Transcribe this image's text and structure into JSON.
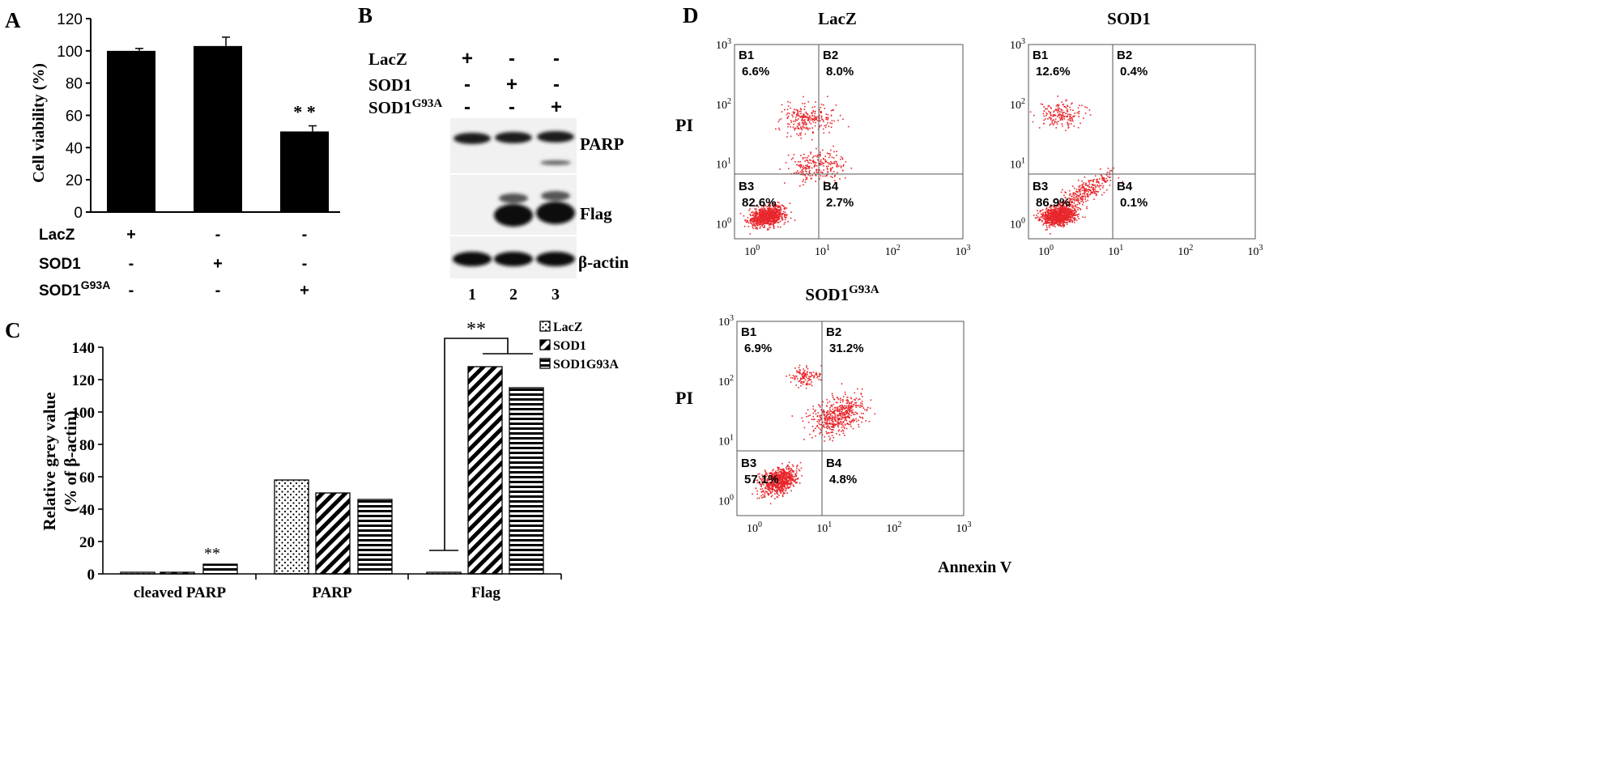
{
  "colors": {
    "ink": "#000000",
    "dots": "#e8262b",
    "blot_bg": "#f1f1f1",
    "band": "#1a1a1a"
  },
  "chart_data": [
    {
      "panel": "A",
      "type": "bar",
      "ylabel": "Cell viability (%)",
      "ylim": [
        0,
        120
      ],
      "yticks": [
        "0",
        "20",
        "40",
        "60",
        "80",
        "100",
        "120"
      ],
      "categories": [
        "LacZ",
        "SOD1",
        "SOD1G93A"
      ],
      "values": [
        100,
        103,
        50
      ],
      "errors": [
        1.5,
        5.5,
        3.5
      ],
      "significance": [
        "",
        "",
        "* *"
      ],
      "rows": [
        {
          "label": "LacZ",
          "marks": [
            "+",
            "-",
            "-"
          ]
        },
        {
          "label": "SOD1",
          "marks": [
            "-",
            "+",
            "-"
          ]
        },
        {
          "label": "SOD1",
          "sup": "G93A",
          "marks": [
            "-",
            "-",
            "+"
          ]
        }
      ]
    },
    {
      "panel": "C",
      "type": "bar",
      "ylabel_line1": "Relative grey value",
      "ylabel_line2": "(% of β-actin)",
      "ylim": [
        0,
        140
      ],
      "yticks": [
        "0",
        "20",
        "40",
        "60",
        "80",
        "100",
        "120",
        "140"
      ],
      "categories": [
        "cleaved PARP",
        "PARP",
        "Flag"
      ],
      "series": [
        {
          "name": "LacZ",
          "values": [
            1,
            58,
            1
          ]
        },
        {
          "name": "SOD1",
          "values": [
            1,
            50,
            128
          ]
        },
        {
          "name": "SOD1G93A",
          "values": [
            6,
            46,
            115
          ]
        }
      ],
      "annotations": [
        "**",
        "**"
      ]
    },
    {
      "panel": "D",
      "type": "scatter",
      "xlabel": "Annexin V",
      "ylabel": "PI",
      "axis_exponents": [
        "0",
        "1",
        "2",
        "3"
      ],
      "axis_base": "10",
      "plots": [
        {
          "title": "LacZ",
          "quadrants": [
            {
              "name": "B1",
              "value": "6.6%"
            },
            {
              "name": "B2",
              "value": "8.0%"
            },
            {
              "name": "B3",
              "value": "82.6%"
            },
            {
              "name": "B4",
              "value": "2.7%"
            }
          ]
        },
        {
          "title": "SOD1",
          "quadrants": [
            {
              "name": "B1",
              "value": "12.6%"
            },
            {
              "name": "B2",
              "value": "0.4%"
            },
            {
              "name": "B3",
              "value": "86.9%"
            },
            {
              "name": "B4",
              "value": "0.1%"
            }
          ]
        },
        {
          "title": "SOD1",
          "title_sup": "G93A",
          "quadrants": [
            {
              "name": "B1",
              "value": "6.9%"
            },
            {
              "name": "B2",
              "value": "31.2%"
            },
            {
              "name": "B3",
              "value": "57.1%"
            },
            {
              "name": "B4",
              "value": "4.8%"
            }
          ]
        }
      ]
    }
  ],
  "panels": {
    "a": "A",
    "b": "B",
    "c": "C",
    "d": "D"
  },
  "blot": {
    "rows": [
      {
        "label": "LacZ",
        "marks": [
          "+",
          "-",
          "-"
        ]
      },
      {
        "label": "SOD1",
        "marks": [
          "-",
          "+",
          "-"
        ]
      },
      {
        "label": "SOD1",
        "sup": "G93A",
        "marks": [
          "-",
          "-",
          "+"
        ]
      }
    ],
    "bands": [
      "PARP",
      "Flag",
      "β-actin"
    ],
    "lanes": [
      "1",
      "2",
      "3"
    ]
  }
}
